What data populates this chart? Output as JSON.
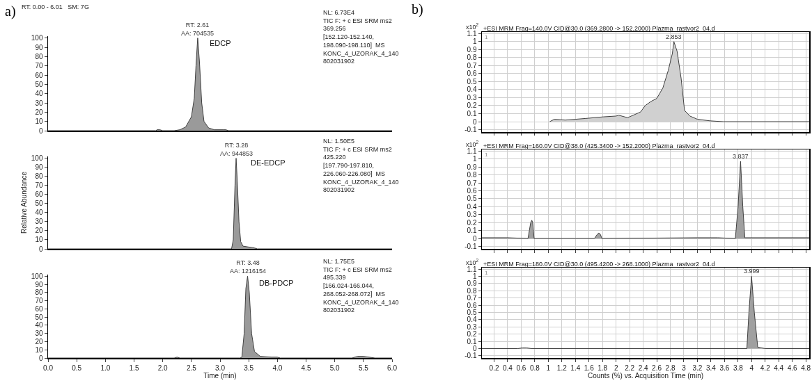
{
  "chart_data": [
    {
      "type": "area",
      "annotations": [
        "a)",
        "RT: 0.00 - 6.01   SM: 7G",
        {
          "text": "RT: 2.61\nAA: 704535",
          "x": 2.61,
          "y": 100
        },
        "EDCP",
        "NL: 6.73E4\nTIC F: + c ESI SRM ms2\n369.256\n[152.120-152.140,\n198.090-198.110]  MS\nKONC_4_UZORAK_4_140\n802031902"
      ],
      "series": [
        {
          "color": "#9a9a9a",
          "x": [
            0,
            1.88,
            1.9,
            1.95,
            2.0,
            2.2,
            2.3,
            2.4,
            2.5,
            2.55,
            2.58,
            2.61,
            2.64,
            2.68,
            2.72,
            2.8,
            2.9,
            3.05,
            3.1,
            3.15,
            6.0
          ],
          "values": [
            0,
            0,
            1,
            1,
            0,
            0,
            1,
            4,
            15,
            35,
            70,
            100,
            75,
            30,
            10,
            3,
            1,
            1,
            1,
            0,
            0
          ]
        }
      ],
      "xlim": [
        0,
        6
      ],
      "ylim": [
        0,
        102
      ],
      "yticks": [
        0,
        10,
        20,
        30,
        40,
        50,
        60,
        70,
        80,
        90,
        100
      ],
      "tick_labels": "y",
      "grid": false
    },
    {
      "type": "area",
      "annotations": [
        {
          "text": "RT: 3.28\nAA: 944853",
          "x": 3.28,
          "y": 100
        },
        "DE-EDCP",
        "NL: 1.50E5\nTIC F: + c ESI SRM ms2\n425.220\n[197.790-197.810,\n226.060-226.080]  MS\nKONC_4_UZORAK_4_140\n802031902"
      ],
      "ylabel": "Relative Abundance",
      "series": [
        {
          "color": "#9a9a9a",
          "x": [
            0,
            3.2,
            3.23,
            3.26,
            3.28,
            3.3,
            3.33,
            3.36,
            3.4,
            3.5,
            3.6,
            3.65,
            6.0
          ],
          "values": [
            0,
            0,
            10,
            70,
            100,
            75,
            30,
            8,
            3,
            2,
            1,
            0,
            0
          ]
        }
      ],
      "xlim": [
        0,
        6
      ],
      "ylim": [
        0,
        102
      ],
      "yticks": [
        0,
        10,
        20,
        30,
        40,
        50,
        60,
        70,
        80,
        90,
        100
      ],
      "tick_labels": "y",
      "grid": false
    },
    {
      "type": "area",
      "annotations": [
        {
          "text": "RT: 3.48\nAA: 1216154",
          "x": 3.48,
          "y": 100
        },
        "DB-PDCP",
        "NL: 1.75E5\nTIC F: + c ESI SRM ms2\n495.339\n[166.024-166.044,\n268.052-268.072]  MS\nKONC_4_UZORAK_4_140\n802031902"
      ],
      "xlabel": "Time (min)",
      "series": [
        {
          "color": "#9a9a9a",
          "x": [
            0,
            2.2,
            2.25,
            2.3,
            3.35,
            3.38,
            3.42,
            3.45,
            3.48,
            3.51,
            3.55,
            3.6,
            3.7,
            3.9,
            4.0,
            4.05,
            5.3,
            5.4,
            5.5,
            5.6,
            5.7,
            6.0
          ],
          "values": [
            0,
            0,
            1,
            0,
            0,
            1,
            30,
            85,
            100,
            80,
            30,
            8,
            2,
            1,
            1,
            0,
            0,
            2,
            2,
            1,
            0,
            0
          ]
        }
      ],
      "xlim": [
        0,
        6
      ],
      "ylim": [
        0,
        102
      ],
      "xticks": [
        {
          "value": 0,
          "label": "0.0"
        },
        {
          "value": 0.5,
          "label": "0.5"
        },
        {
          "value": 1,
          "label": "1.0"
        },
        {
          "value": 1.5,
          "label": "1.5"
        },
        {
          "value": 2,
          "label": "2.0"
        },
        {
          "value": 2.5,
          "label": "2.5"
        },
        {
          "value": 3,
          "label": "3.0"
        },
        {
          "value": 3.5,
          "label": "3.5"
        },
        {
          "value": 4,
          "label": "4.0"
        },
        {
          "value": 4.5,
          "label": "4.5"
        },
        {
          "value": 5,
          "label": "5.0"
        },
        {
          "value": 5.5,
          "label": "5.5"
        },
        {
          "value": 6,
          "label": "6.0"
        }
      ],
      "yticks": [
        0,
        10,
        20,
        30,
        40,
        50,
        60,
        70,
        80,
        90,
        100
      ],
      "grid": false
    },
    {
      "type": "area",
      "title": "+ESI MRM Frag=140.0V CID@30.0 (369.2800 -> 152.2000) Plazma_rastvor2_04.d",
      "annotations": [
        "b)",
        "x10$^{2}$",
        "1",
        {
          "text": "2.853",
          "x": 2.853,
          "y": 1
        }
      ],
      "series": [
        {
          "color": "#d0d0d0",
          "x": [
            1.02,
            1.09,
            1.25,
            1.55,
            1.81,
            2.0,
            2.04,
            2.17,
            2.36,
            2.43,
            2.51,
            2.6,
            2.69,
            2.77,
            2.83,
            2.853,
            2.9,
            2.96,
            3.01,
            3.09,
            3.2,
            3.39,
            3.58,
            4.85
          ],
          "values": [
            0,
            0.03,
            0.02,
            0.04,
            0.06,
            0.07,
            0.08,
            0.05,
            0.12,
            0.2,
            0.25,
            0.29,
            0.42,
            0.64,
            0.85,
            1.0,
            0.88,
            0.54,
            0.14,
            0.07,
            0.03,
            0.01,
            0,
            0
          ]
        }
      ],
      "xlim": [
        0.02,
        4.85
      ],
      "ylim": [
        -0.13,
        1.12
      ],
      "xticks": [
        0.2,
        0.4,
        0.6,
        0.8,
        1,
        1.2,
        1.4,
        1.6,
        1.8,
        2,
        2.2,
        2.4,
        2.6,
        2.8,
        3,
        3.2,
        3.4,
        3.6,
        3.8,
        4,
        4.2,
        4.4,
        4.6,
        4.8
      ],
      "yticks": [
        -0.1,
        0,
        0.1,
        0.2,
        0.3,
        0.4,
        0.5,
        0.6,
        0.7,
        0.8,
        0.9,
        1,
        1.1
      ],
      "tick_labels": "y",
      "grid": true
    },
    {
      "type": "area",
      "title": "+ESI MRM Frag=160.0V CID@38.0 (425.3400 -> 152.2000) Plazma_rastvor2_04.d",
      "annotations": [
        "x10$^{2}$",
        "1",
        {
          "text": "3.837",
          "x": 3.837,
          "y": 0.97
        }
      ],
      "series": [
        {
          "color": "#a0a0a0",
          "x": [
            0.02,
            0.4,
            0.7,
            0.72,
            0.74,
            0.756,
            0.77,
            0.79,
            1.4,
            1.68,
            1.72,
            1.746,
            1.77,
            1.79,
            3.2,
            3.5,
            3.76,
            3.8,
            3.837,
            3.87,
            3.9,
            4.85
          ],
          "values": [
            0.01,
            0.01,
            0,
            0.1,
            0.2,
            0.23,
            0.2,
            0,
            0,
            0,
            0.05,
            0.07,
            0.05,
            0,
            0.01,
            0.01,
            0,
            0.4,
            0.97,
            0.4,
            0.01,
            0.01
          ]
        }
      ],
      "xlim": [
        0.02,
        4.85
      ],
      "ylim": [
        -0.13,
        1.12
      ],
      "xticks": [
        0.2,
        0.4,
        0.6,
        0.8,
        1,
        1.2,
        1.4,
        1.6,
        1.8,
        2,
        2.2,
        2.4,
        2.6,
        2.8,
        3,
        3.2,
        3.4,
        3.6,
        3.8,
        4,
        4.2,
        4.4,
        4.6,
        4.8
      ],
      "yticks": [
        -0.1,
        0,
        0.1,
        0.2,
        0.3,
        0.4,
        0.5,
        0.6,
        0.7,
        0.8,
        0.9,
        1,
        1.1
      ],
      "tick_labels": "y",
      "grid": true
    },
    {
      "type": "area",
      "title": "+ESI MRM Frag=180.0V CID@30.0 (495.4200 -> 268.1000) Plazma_rastvor2_04.d",
      "annotations": [
        "x10$^{2}$",
        "1",
        {
          "text": "3.999",
          "x": 3.999,
          "y": 1
        }
      ],
      "xlabel": "Counts (%) vs. Acquisition Time (min)",
      "series": [
        {
          "color": "#a0a0a0",
          "x": [
            0.02,
            0.55,
            0.62,
            0.68,
            0.75,
            3.93,
            3.96,
            3.999,
            4.04,
            4.09,
            4.2,
            4.85
          ],
          "values": [
            0,
            0,
            0.01,
            0.01,
            0,
            0,
            0.5,
            1.0,
            0.5,
            0.02,
            0,
            0
          ]
        }
      ],
      "xlim": [
        0.02,
        4.85
      ],
      "ylim": [
        -0.13,
        1.12
      ],
      "xticks": [
        0.2,
        0.4,
        0.6,
        0.8,
        1,
        1.2,
        1.4,
        1.6,
        1.8,
        2,
        2.2,
        2.4,
        2.6,
        2.8,
        3,
        3.2,
        3.4,
        3.6,
        3.8,
        4,
        4.2,
        4.4,
        4.6,
        4.8
      ],
      "yticks": [
        -0.1,
        0,
        0.1,
        0.2,
        0.3,
        0.4,
        0.5,
        0.6,
        0.7,
        0.8,
        0.9,
        1,
        1.1
      ],
      "grid": true
    }
  ]
}
